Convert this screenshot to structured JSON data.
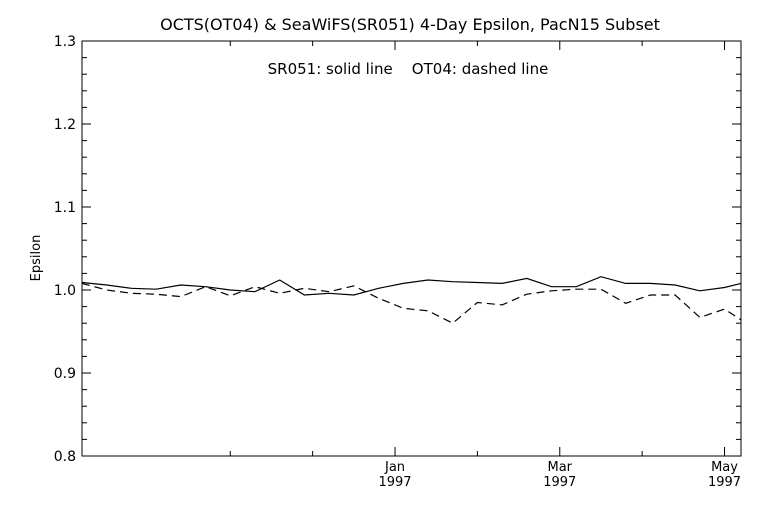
{
  "chart_data": {
    "type": "line",
    "title": "OCTS(OT04) & SeaWiFS(SR051) 4-Day Epsilon, PacN15 Subset",
    "annotation": "SR051: solid line    OT04: dashed line",
    "ylabel": "Epsilon",
    "xlabel": "",
    "ylim": [
      0.8,
      1.3
    ],
    "yticks": [
      "0.8",
      "0.9",
      "1.0",
      "1.1",
      "1.2",
      "1.3"
    ],
    "xlim": [
      0,
      40
    ],
    "xticks": [
      {
        "x": 19,
        "month": "Jan",
        "year": "1997"
      },
      {
        "x": 29,
        "month": "Mar",
        "year": "1997"
      },
      {
        "x": 39,
        "month": "May",
        "year": "1997"
      }
    ],
    "minor_xticks": [
      9,
      14,
      24,
      34
    ],
    "grid": false,
    "x": [
      0,
      1.5,
      3,
      4.5,
      6,
      7.5,
      9,
      10.5,
      12,
      13.5,
      15,
      16.5,
      18,
      19.5,
      21,
      22.5,
      24,
      25.5,
      27,
      28.5,
      30,
      31.5,
      33,
      34.5,
      36,
      37.5,
      39,
      40
    ],
    "series": [
      {
        "name": "SR051",
        "style": "solid",
        "values": [
          1.009,
          1.006,
          1.002,
          1.001,
          1.006,
          1.004,
          1.0,
          0.998,
          1.012,
          0.994,
          0.996,
          0.994,
          1.002,
          1.008,
          1.012,
          1.01,
          1.009,
          1.008,
          1.014,
          1.004,
          1.004,
          1.016,
          1.008,
          1.008,
          1.006,
          0.999,
          1.003,
          1.008
        ]
      },
      {
        "name": "OT04",
        "style": "dashed",
        "values": [
          1.008,
          1.0,
          0.996,
          0.995,
          0.992,
          1.004,
          0.993,
          1.004,
          0.996,
          1.002,
          0.998,
          1.005,
          0.99,
          0.978,
          0.975,
          0.96,
          0.985,
          0.982,
          0.995,
          0.999,
          1.001,
          1.001,
          0.984,
          0.994,
          0.994,
          0.967,
          0.977,
          0.964
        ]
      }
    ]
  }
}
